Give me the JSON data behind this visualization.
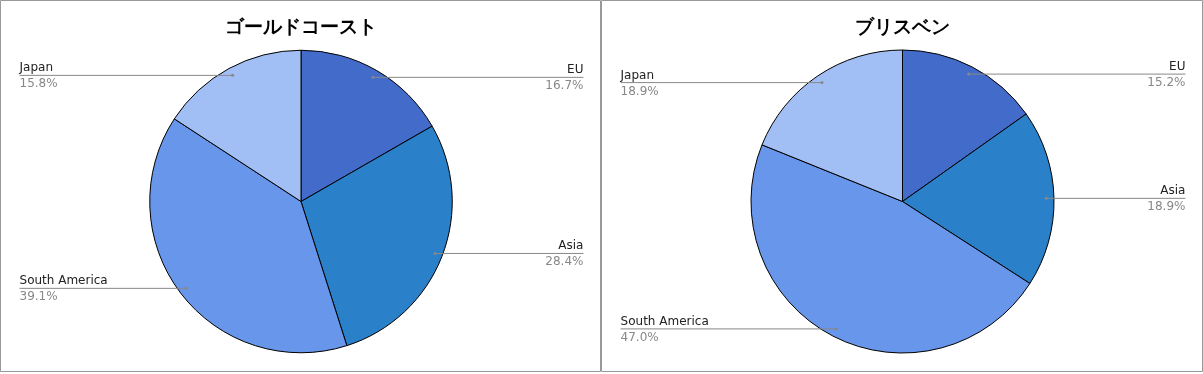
{
  "chart_data": [
    {
      "type": "pie",
      "title": "ゴールドコースト",
      "categories": [
        "EU",
        "Asia",
        "South America",
        "Japan"
      ],
      "values": [
        16.7,
        28.4,
        39.1,
        15.8
      ],
      "colors": [
        "#436bc9",
        "#2a80c9",
        "#6896ea",
        "#a2bff5"
      ],
      "value_labels": [
        "16.7%",
        "28.4%",
        "39.1%",
        "15.8%"
      ]
    },
    {
      "type": "pie",
      "title": "ブリスベン",
      "categories": [
        "EU",
        "Asia",
        "South America",
        "Japan"
      ],
      "values": [
        15.2,
        18.9,
        47.0,
        18.9
      ],
      "colors": [
        "#436bc9",
        "#2a80c9",
        "#6896ea",
        "#a2bff5"
      ],
      "value_labels": [
        "15.2%",
        "18.9%",
        "47.0%",
        "18.9%"
      ]
    }
  ]
}
